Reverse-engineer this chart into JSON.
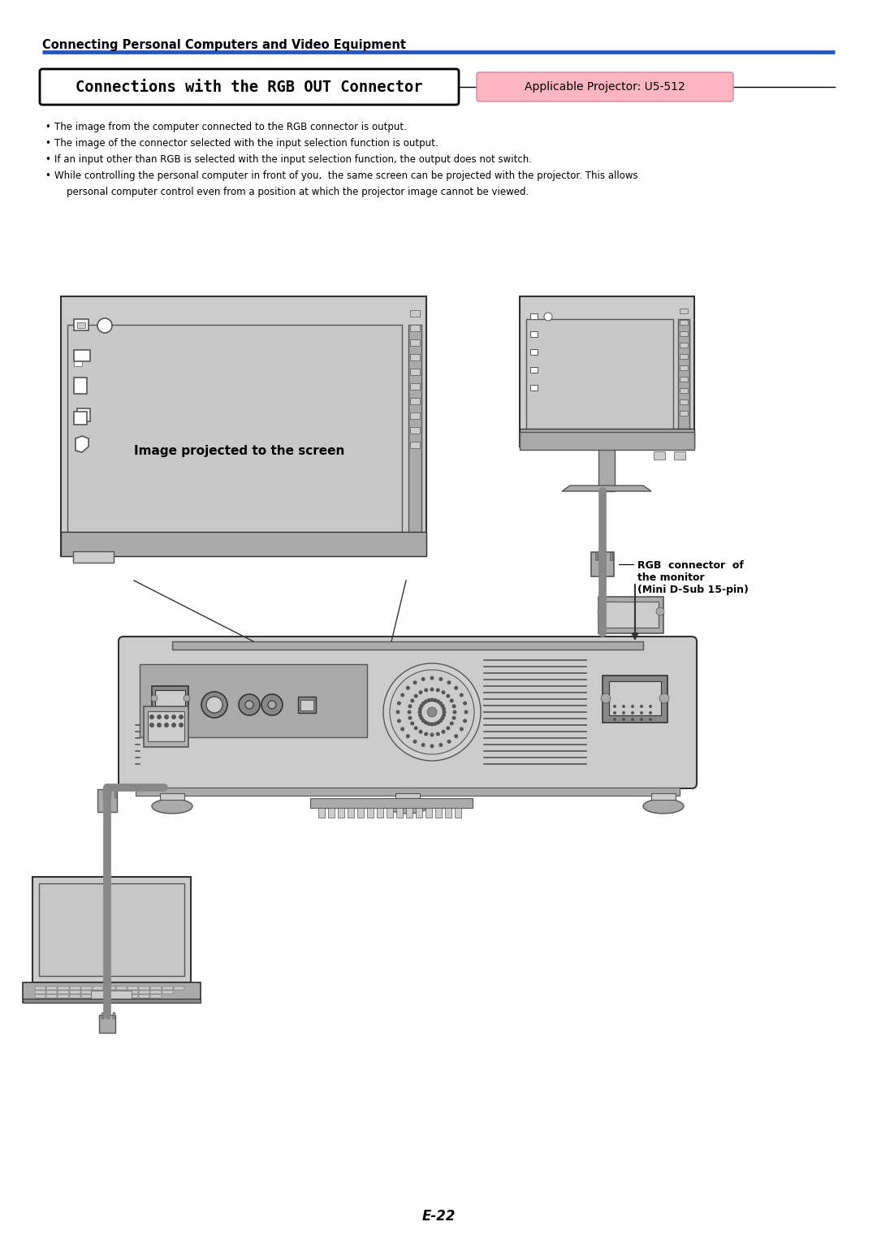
{
  "page_title": "Connecting Personal Computers and Video Equipment",
  "section_title": "Connections with the RGB OUT Connector",
  "applicable_label": "Applicable Projector: U5-512",
  "bullet_points": [
    "The image from the computer connected to the RGB connector is output.",
    "The image of the connector selected with the input selection function is output.",
    "If an input other than RGB is selected with the input selection function, the output does not switch.",
    "While controlling the personal computer in front of you,  the same screen can be projected with the projector. This allows",
    "    personal computer control even from a position at which the projector image cannot be viewed."
  ],
  "page_number": "E-22",
  "blue_line_color": "#2255cc",
  "title_bg_color": "#ffffff",
  "title_border_color": "#000000",
  "applicable_bg_color": "#ffb6c1",
  "applicable_text_color": "#000000",
  "annotation_text": "RGB  connector  of\nthe monitor\n(Mini D-Sub 15-pin)",
  "diagram_label": "Image projected to the screen",
  "bg_color": "#ffffff",
  "text_color": "#000000",
  "gray_light": "#cccccc",
  "gray_mid": "#aaaaaa",
  "gray_dark": "#888888",
  "gray_darker": "#555555",
  "gray_border": "#333333"
}
